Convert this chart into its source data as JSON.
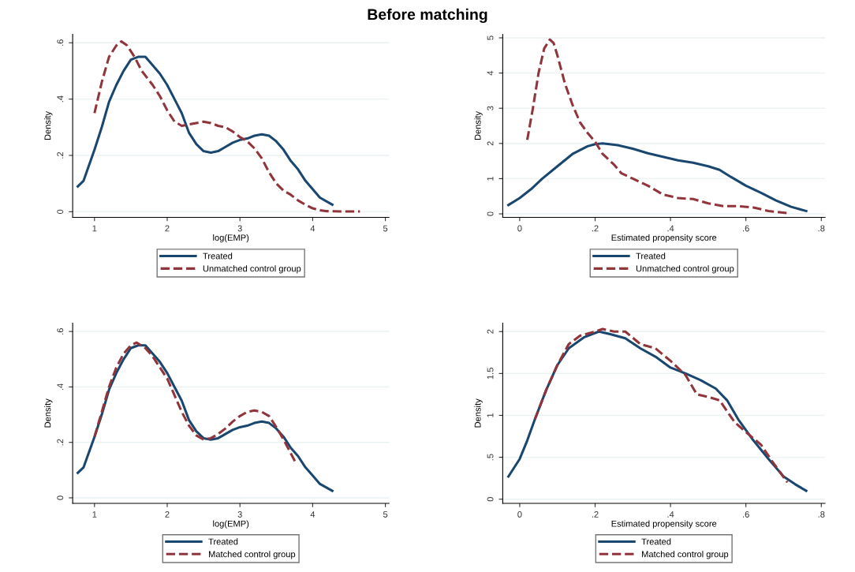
{
  "chart_data": [
    {
      "type": "line",
      "title": "Before matching",
      "xlabel": "log(EMP)",
      "ylabel": "Density",
      "xlim": [
        0.7,
        5.05
      ],
      "xticks": [
        1,
        2,
        3,
        4,
        5
      ],
      "ylim": [
        -0.02,
        0.63
      ],
      "yticks": [
        0,
        {
          "value": 0.2,
          "label": ".2"
        },
        {
          "value": 0.4,
          "label": ".4"
        },
        {
          "value": 0.6,
          "label": ".6"
        }
      ],
      "grid": "y",
      "legend": "bottom",
      "series": [
        {
          "name": "Treated",
          "color": "#1a476f",
          "line_style": "solid",
          "x": [
            0.77,
            0.85,
            1.0,
            1.1,
            1.2,
            1.3,
            1.4,
            1.5,
            1.6,
            1.7,
            1.8,
            1.9,
            2.0,
            2.1,
            2.2,
            2.3,
            2.4,
            2.5,
            2.6,
            2.7,
            2.8,
            2.9,
            3.0,
            3.1,
            3.2,
            3.3,
            3.4,
            3.5,
            3.6,
            3.7,
            3.8,
            3.9,
            4.0,
            4.1,
            4.27
          ],
          "values": [
            0.09,
            0.11,
            0.22,
            0.3,
            0.39,
            0.45,
            0.5,
            0.54,
            0.55,
            0.55,
            0.52,
            0.49,
            0.45,
            0.4,
            0.35,
            0.28,
            0.24,
            0.215,
            0.21,
            0.215,
            0.23,
            0.245,
            0.255,
            0.26,
            0.27,
            0.275,
            0.27,
            0.25,
            0.22,
            0.18,
            0.15,
            0.11,
            0.08,
            0.05,
            0.025
          ]
        },
        {
          "name": "Unmatched control group",
          "color": "#90353b",
          "line_style": "dashed",
          "x": [
            1.0,
            1.1,
            1.2,
            1.3,
            1.37,
            1.45,
            1.55,
            1.65,
            1.8,
            1.9,
            2.0,
            2.1,
            2.2,
            2.3,
            2.4,
            2.5,
            2.6,
            2.7,
            2.8,
            2.9,
            3.0,
            3.1,
            3.2,
            3.3,
            3.4,
            3.5,
            3.6,
            3.7,
            3.8,
            3.9,
            4.0,
            4.1,
            4.2,
            4.4,
            4.65
          ],
          "values": [
            0.35,
            0.46,
            0.55,
            0.59,
            0.605,
            0.59,
            0.55,
            0.5,
            0.45,
            0.41,
            0.36,
            0.32,
            0.305,
            0.31,
            0.315,
            0.32,
            0.315,
            0.305,
            0.3,
            0.285,
            0.265,
            0.25,
            0.225,
            0.19,
            0.14,
            0.1,
            0.075,
            0.06,
            0.04,
            0.025,
            0.012,
            0.005,
            0.002,
            0.001,
            0.001
          ]
        }
      ]
    },
    {
      "type": "line",
      "xlabel": "Estimated propensity score",
      "ylabel": "Density",
      "xlim": [
        -0.045,
        0.81
      ],
      "xticks": [
        0,
        {
          "value": 0.2,
          "label": ".2"
        },
        {
          "value": 0.4,
          "label": ".4"
        },
        {
          "value": 0.6,
          "label": ".6"
        },
        {
          "value": 0.8,
          "label": ".8"
        }
      ],
      "ylim": [
        -0.1,
        5.1
      ],
      "yticks": [
        0,
        1,
        2,
        3,
        4,
        5
      ],
      "grid": "y",
      "legend": "bottom",
      "series": [
        {
          "name": "Treated",
          "color": "#1a476f",
          "line_style": "solid",
          "x": [
            -0.03,
            0,
            0.03,
            0.06,
            0.1,
            0.14,
            0.18,
            0.2,
            0.22,
            0.26,
            0.3,
            0.34,
            0.38,
            0.42,
            0.46,
            0.5,
            0.53,
            0.56,
            0.6,
            0.64,
            0.68,
            0.72,
            0.76
          ],
          "values": [
            0.25,
            0.45,
            0.7,
            1.0,
            1.35,
            1.7,
            1.92,
            1.98,
            2.0,
            1.95,
            1.85,
            1.72,
            1.62,
            1.52,
            1.45,
            1.35,
            1.25,
            1.05,
            0.8,
            0.6,
            0.38,
            0.2,
            0.08
          ]
        },
        {
          "name": "Unmatched control group",
          "color": "#90353b",
          "line_style": "dashed",
          "x": [
            0.02,
            0.035,
            0.05,
            0.065,
            0.08,
            0.09,
            0.1,
            0.12,
            0.14,
            0.16,
            0.18,
            0.2,
            0.22,
            0.25,
            0.27,
            0.3,
            0.34,
            0.38,
            0.42,
            0.46,
            0.5,
            0.54,
            0.58,
            0.62,
            0.66,
            0.71
          ],
          "values": [
            2.1,
            3.0,
            4.0,
            4.7,
            4.95,
            4.85,
            4.5,
            3.7,
            3.1,
            2.6,
            2.3,
            2.05,
            1.7,
            1.4,
            1.15,
            1.0,
            0.8,
            0.55,
            0.45,
            0.42,
            0.3,
            0.22,
            0.22,
            0.18,
            0.08,
            0.02
          ]
        }
      ]
    },
    {
      "type": "line",
      "xlabel": "log(EMP)",
      "ylabel": "Density",
      "xlim": [
        0.7,
        5.05
      ],
      "xticks": [
        1,
        2,
        3,
        4,
        5
      ],
      "ylim": [
        -0.02,
        0.63
      ],
      "yticks": [
        0,
        {
          "value": 0.2,
          "label": ".2"
        },
        {
          "value": 0.4,
          "label": ".4"
        },
        {
          "value": 0.6,
          "label": ".6"
        }
      ],
      "grid": "y",
      "legend": "bottom",
      "series": [
        {
          "name": "Treated",
          "color": "#1a476f",
          "line_style": "solid",
          "x": [
            0.77,
            0.85,
            1.0,
            1.1,
            1.2,
            1.3,
            1.4,
            1.5,
            1.6,
            1.7,
            1.8,
            1.9,
            2.0,
            2.1,
            2.2,
            2.3,
            2.4,
            2.5,
            2.6,
            2.7,
            2.8,
            2.9,
            3.0,
            3.1,
            3.2,
            3.3,
            3.4,
            3.5,
            3.6,
            3.7,
            3.8,
            3.9,
            4.0,
            4.1,
            4.27
          ],
          "values": [
            0.09,
            0.11,
            0.22,
            0.3,
            0.39,
            0.45,
            0.5,
            0.54,
            0.55,
            0.55,
            0.52,
            0.49,
            0.45,
            0.4,
            0.35,
            0.28,
            0.24,
            0.215,
            0.21,
            0.215,
            0.23,
            0.245,
            0.255,
            0.26,
            0.27,
            0.275,
            0.27,
            0.25,
            0.22,
            0.18,
            0.15,
            0.11,
            0.08,
            0.05,
            0.025
          ]
        },
        {
          "name": "Matched control group",
          "color": "#90353b",
          "line_style": "dashed",
          "x": [
            1.0,
            1.1,
            1.2,
            1.3,
            1.4,
            1.5,
            1.58,
            1.7,
            1.8,
            1.9,
            2.0,
            2.1,
            2.2,
            2.3,
            2.4,
            2.5,
            2.6,
            2.7,
            2.8,
            2.9,
            3.0,
            3.1,
            3.2,
            3.3,
            3.4,
            3.5,
            3.6,
            3.7,
            3.77
          ],
          "values": [
            0.22,
            0.31,
            0.4,
            0.47,
            0.52,
            0.55,
            0.56,
            0.54,
            0.51,
            0.47,
            0.43,
            0.37,
            0.31,
            0.26,
            0.225,
            0.21,
            0.215,
            0.23,
            0.25,
            0.275,
            0.295,
            0.31,
            0.315,
            0.31,
            0.295,
            0.255,
            0.21,
            0.16,
            0.125
          ]
        }
      ]
    },
    {
      "type": "line",
      "xlabel": "Estimated propensity score",
      "ylabel": "Density",
      "xlim": [
        -0.045,
        0.81
      ],
      "xticks": [
        0,
        {
          "value": 0.2,
          "label": ".2"
        },
        {
          "value": 0.4,
          "label": ".4"
        },
        {
          "value": 0.6,
          "label": ".6"
        },
        {
          "value": 0.8,
          "label": ".8"
        }
      ],
      "ylim": [
        -0.05,
        2.1
      ],
      "yticks": [
        0,
        {
          "value": 0.5,
          "label": ".5"
        },
        1,
        1.5,
        2
      ],
      "grid": "y",
      "legend": "bottom",
      "series": [
        {
          "name": "Treated",
          "color": "#1a476f",
          "line_style": "solid",
          "x": [
            -0.03,
            0,
            0.02,
            0.04,
            0.07,
            0.1,
            0.13,
            0.17,
            0.21,
            0.24,
            0.28,
            0.32,
            0.36,
            0.4,
            0.44,
            0.48,
            0.52,
            0.55,
            0.58,
            0.62,
            0.66,
            0.7,
            0.73,
            0.76
          ],
          "values": [
            0.27,
            0.48,
            0.7,
            0.95,
            1.3,
            1.6,
            1.8,
            1.93,
            2.0,
            1.97,
            1.92,
            1.8,
            1.7,
            1.57,
            1.5,
            1.42,
            1.32,
            1.18,
            0.95,
            0.7,
            0.48,
            0.27,
            0.18,
            0.1
          ]
        },
        {
          "name": "Matched control group",
          "color": "#90353b",
          "line_style": "dashed",
          "x": [
            0.04,
            0.07,
            0.1,
            0.13,
            0.16,
            0.2,
            0.22,
            0.25,
            0.28,
            0.32,
            0.36,
            0.4,
            0.44,
            0.47,
            0.5,
            0.53,
            0.57,
            0.6,
            0.64,
            0.67,
            0.71
          ],
          "values": [
            0.95,
            1.3,
            1.6,
            1.85,
            1.95,
            2.0,
            2.03,
            2.0,
            2.0,
            1.85,
            1.8,
            1.65,
            1.48,
            1.25,
            1.22,
            1.18,
            0.92,
            0.8,
            0.65,
            0.45,
            0.2
          ]
        }
      ]
    }
  ]
}
